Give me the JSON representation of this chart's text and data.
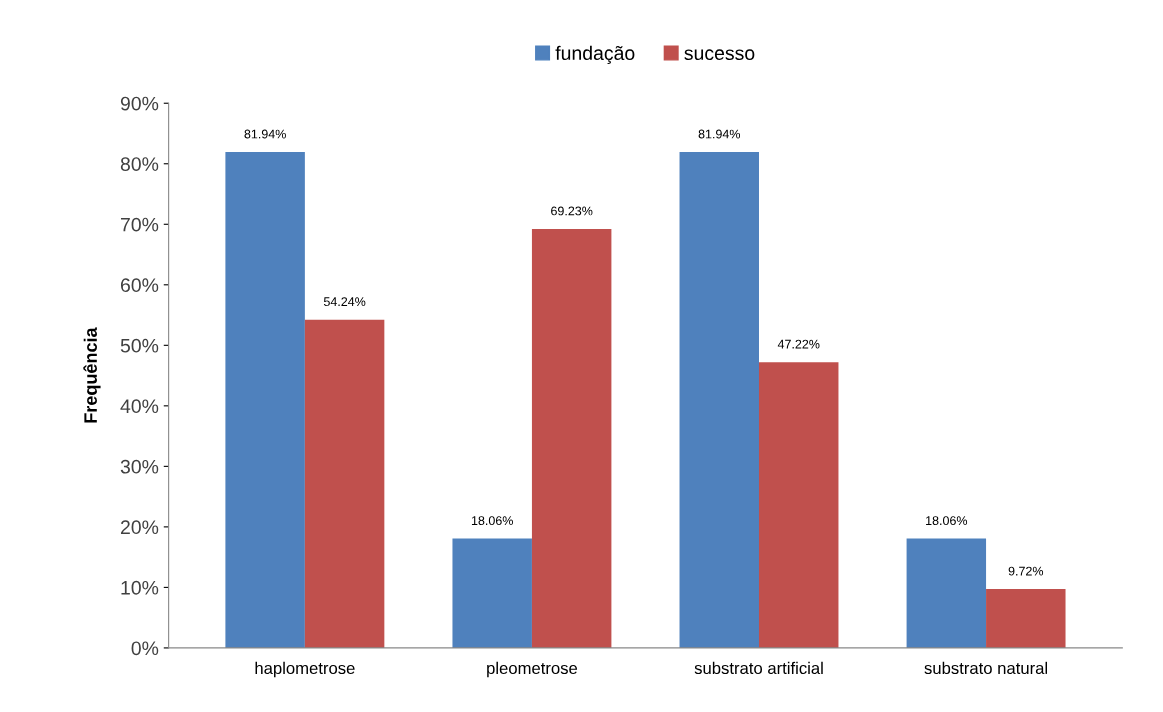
{
  "chart_data": {
    "type": "bar",
    "ylabel": "Frequência",
    "categories": [
      "haplometrose",
      "pleometrose",
      "substrato artificial",
      "substrato natural"
    ],
    "series": [
      {
        "name": "fundação",
        "color": "#4f81bd",
        "values": [
          81.94,
          18.06,
          81.94,
          18.06
        ],
        "value_labels": [
          "81.94%",
          "18.06%",
          "81.94%",
          "18.06%"
        ]
      },
      {
        "name": "sucesso",
        "color": "#c0504d",
        "values": [
          54.24,
          69.23,
          47.22,
          9.72
        ],
        "value_labels": [
          "54.24%",
          "69.23%",
          "47.22%",
          "9.72%"
        ]
      }
    ],
    "ylim": [
      0,
      90
    ],
    "yticks": [
      {
        "value": 0,
        "label": "0%"
      },
      {
        "value": 10,
        "label": "10%"
      },
      {
        "value": 20,
        "label": "20%"
      },
      {
        "value": 30,
        "label": "30%"
      },
      {
        "value": 40,
        "label": "40%"
      },
      {
        "value": 50,
        "label": "50%"
      },
      {
        "value": 60,
        "label": "60%"
      },
      {
        "value": 70,
        "label": "70%"
      },
      {
        "value": 80,
        "label": "80%"
      },
      {
        "value": 90,
        "label": "90%"
      }
    ],
    "grid": false,
    "legend": "top"
  }
}
